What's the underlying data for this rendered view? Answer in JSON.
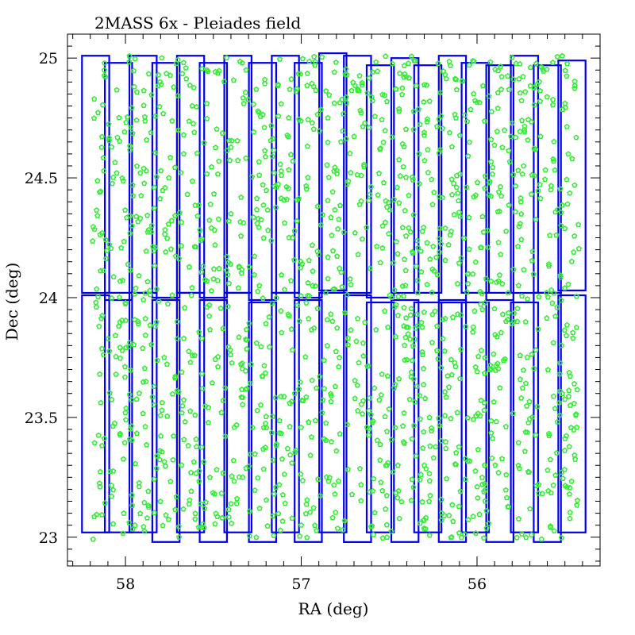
{
  "chart_data": {
    "type": "scatter",
    "title": "2MASS 6x - Pleiades field",
    "xlabel": "RA (deg)",
    "ylabel": "Dec (deg)",
    "x_reversed": true,
    "xlim": [
      58.33,
      55.3
    ],
    "ylim": [
      22.88,
      25.1
    ],
    "x_ticks": [
      58,
      57,
      56
    ],
    "x_tick_labels": [
      "58",
      "57",
      "56"
    ],
    "y_ticks": [
      25,
      24.5,
      24,
      23.5,
      23
    ],
    "y_tick_labels": [
      "25",
      "24.5",
      "24",
      "23.5",
      "23"
    ],
    "grid": false,
    "legend": false,
    "series": [
      {
        "kind": "survey-scan-footprints",
        "color": "#0000ee",
        "rect_width_deg": 0.155,
        "ra_centers": [
          58.17,
          58.04,
          57.9,
          57.77,
          57.63,
          57.5,
          57.36,
          57.22,
          57.09,
          56.96,
          56.82,
          56.68,
          56.55,
          56.41,
          56.28,
          56.14,
          56.01,
          55.87,
          55.73,
          55.6,
          55.46
        ],
        "upper_dec_top": [
          25.01,
          24.98,
          25.01,
          24.98,
          25.01,
          24.98,
          25.01,
          24.98,
          25.01,
          24.98,
          25.02,
          25.01,
          24.97,
          25.0,
          24.97,
          25.01,
          24.98,
          24.97,
          25.01,
          24.97,
          24.99
        ],
        "upper_dec_bottom": [
          24.02,
          23.99,
          24.02,
          24.0,
          24.02,
          24.0,
          24.02,
          23.99,
          24.02,
          24.0,
          24.03,
          24.02,
          24.0,
          24.02,
          24.02,
          23.98,
          24.02,
          23.99,
          24.02,
          24.02,
          24.03
        ],
        "lower_dec_top": [
          24.01,
          24.02,
          24.02,
          23.99,
          24.02,
          23.99,
          24.02,
          23.98,
          24.02,
          23.99,
          24.02,
          24.01,
          23.98,
          23.99,
          23.98,
          23.99,
          23.98,
          24.02,
          23.98,
          24.02,
          24.01
        ],
        "lower_dec_bottom": [
          23.02,
          23.02,
          23.02,
          22.98,
          23.02,
          22.98,
          23.02,
          22.98,
          23.02,
          22.98,
          23.02,
          22.98,
          23.02,
          22.98,
          23.02,
          22.98,
          23.02,
          22.98,
          23.02,
          22.98,
          23.02
        ]
      },
      {
        "kind": "catalog-sources",
        "color": "#33ee33",
        "marker": "pentagon",
        "count": 1600,
        "ra_range": [
          55.42,
          58.19
        ],
        "dec_range": [
          22.99,
          25.01
        ],
        "points": [
          [
            58.12,
            24.95
          ],
          [
            57.95,
            24.88
          ],
          [
            57.62,
            24.8
          ],
          [
            57.21,
            24.71
          ],
          [
            56.74,
            24.93
          ],
          [
            56.33,
            24.6
          ],
          [
            55.92,
            24.66
          ],
          [
            55.58,
            24.45
          ],
          [
            57.4,
            24.35
          ],
          [
            57.05,
            24.25
          ],
          [
            56.9,
            24.18
          ],
          [
            56.05,
            24.1
          ],
          [
            58.15,
            23.88
          ],
          [
            57.78,
            23.75
          ],
          [
            57.31,
            23.62
          ],
          [
            56.87,
            23.41
          ],
          [
            56.45,
            23.3
          ],
          [
            55.97,
            23.22
          ],
          [
            55.52,
            23.8
          ],
          [
            55.47,
            23.55
          ],
          [
            57.55,
            23.12
          ],
          [
            57.0,
            23.05
          ],
          [
            56.2,
            23.1
          ],
          [
            55.69,
            23.01
          ],
          [
            58.05,
            24.52
          ],
          [
            57.83,
            24.21
          ],
          [
            56.61,
            24.43
          ],
          [
            56.12,
            24.75
          ],
          [
            55.79,
            23.9
          ],
          [
            56.36,
            23.66
          ]
        ]
      }
    ]
  }
}
